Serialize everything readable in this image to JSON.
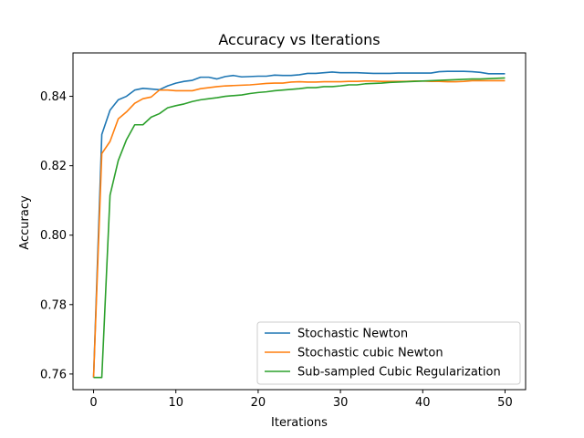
{
  "chart_data": {
    "type": "line",
    "title": "Accuracy vs Iterations",
    "xlabel": "Iterations",
    "ylabel": "Accuracy",
    "xlim": [
      -2.5,
      52.5
    ],
    "ylim": [
      0.7555,
      0.8525
    ],
    "xticks": [
      0,
      10,
      20,
      30,
      40,
      50
    ],
    "xtick_labels": [
      "0",
      "10",
      "20",
      "30",
      "40",
      "50"
    ],
    "yticks": [
      0.76,
      0.78,
      0.8,
      0.82,
      0.84
    ],
    "ytick_labels": [
      "0.76",
      "0.78",
      "0.80",
      "0.82",
      "0.84"
    ],
    "grid": false,
    "legend_position": "bottom-right",
    "x": [
      0,
      1,
      2,
      3,
      4,
      5,
      6,
      7,
      8,
      9,
      10,
      11,
      12,
      13,
      14,
      15,
      16,
      17,
      18,
      19,
      20,
      21,
      22,
      23,
      24,
      25,
      26,
      27,
      28,
      29,
      30,
      31,
      32,
      33,
      34,
      35,
      36,
      37,
      38,
      39,
      40,
      41,
      42,
      43,
      44,
      45,
      46,
      47,
      48,
      49,
      50
    ],
    "series": [
      {
        "name": "Stochastic Newton",
        "color": "#1f77b4",
        "values": [
          0.759,
          0.829,
          0.836,
          0.839,
          0.84,
          0.8418,
          0.8423,
          0.8421,
          0.8419,
          0.843,
          0.8438,
          0.8443,
          0.8446,
          0.8455,
          0.8455,
          0.845,
          0.8457,
          0.846,
          0.8456,
          0.8457,
          0.8458,
          0.8458,
          0.8461,
          0.846,
          0.846,
          0.8462,
          0.8466,
          0.8466,
          0.8468,
          0.847,
          0.8468,
          0.8468,
          0.8468,
          0.8467,
          0.8466,
          0.8466,
          0.8466,
          0.8467,
          0.8467,
          0.8467,
          0.8467,
          0.8467,
          0.8471,
          0.8472,
          0.8472,
          0.8472,
          0.8471,
          0.8469,
          0.8465,
          0.8465,
          0.8465
        ]
      },
      {
        "name": "Stochastic cubic Newton",
        "color": "#ff7f0e",
        "values": [
          0.759,
          0.8235,
          0.827,
          0.8335,
          0.8355,
          0.838,
          0.8393,
          0.8398,
          0.8418,
          0.8418,
          0.8416,
          0.8416,
          0.8416,
          0.8422,
          0.8425,
          0.8428,
          0.843,
          0.8431,
          0.8432,
          0.8433,
          0.8435,
          0.8437,
          0.8438,
          0.8438,
          0.8441,
          0.8442,
          0.8441,
          0.8441,
          0.8442,
          0.8442,
          0.8442,
          0.8443,
          0.8443,
          0.8444,
          0.8444,
          0.8443,
          0.8443,
          0.8443,
          0.8443,
          0.8444,
          0.8444,
          0.8443,
          0.8443,
          0.8442,
          0.8442,
          0.8443,
          0.8445,
          0.8445,
          0.8445,
          0.8445,
          0.8445
        ]
      },
      {
        "name": "Sub-sampled Cubic Regularization",
        "color": "#2ca02c",
        "values": [
          0.759,
          0.759,
          0.8115,
          0.8215,
          0.8275,
          0.8318,
          0.8318,
          0.834,
          0.835,
          0.8367,
          0.8373,
          0.8378,
          0.8385,
          0.839,
          0.8393,
          0.8396,
          0.84,
          0.8402,
          0.8404,
          0.8408,
          0.8411,
          0.8413,
          0.8416,
          0.8418,
          0.842,
          0.8422,
          0.8425,
          0.8425,
          0.8428,
          0.8428,
          0.843,
          0.8433,
          0.8433,
          0.8436,
          0.8437,
          0.8438,
          0.844,
          0.8441,
          0.8442,
          0.8443,
          0.8444,
          0.8445,
          0.8446,
          0.8447,
          0.8448,
          0.8449,
          0.845,
          0.845,
          0.8451,
          0.8452,
          0.8453
        ]
      }
    ]
  }
}
